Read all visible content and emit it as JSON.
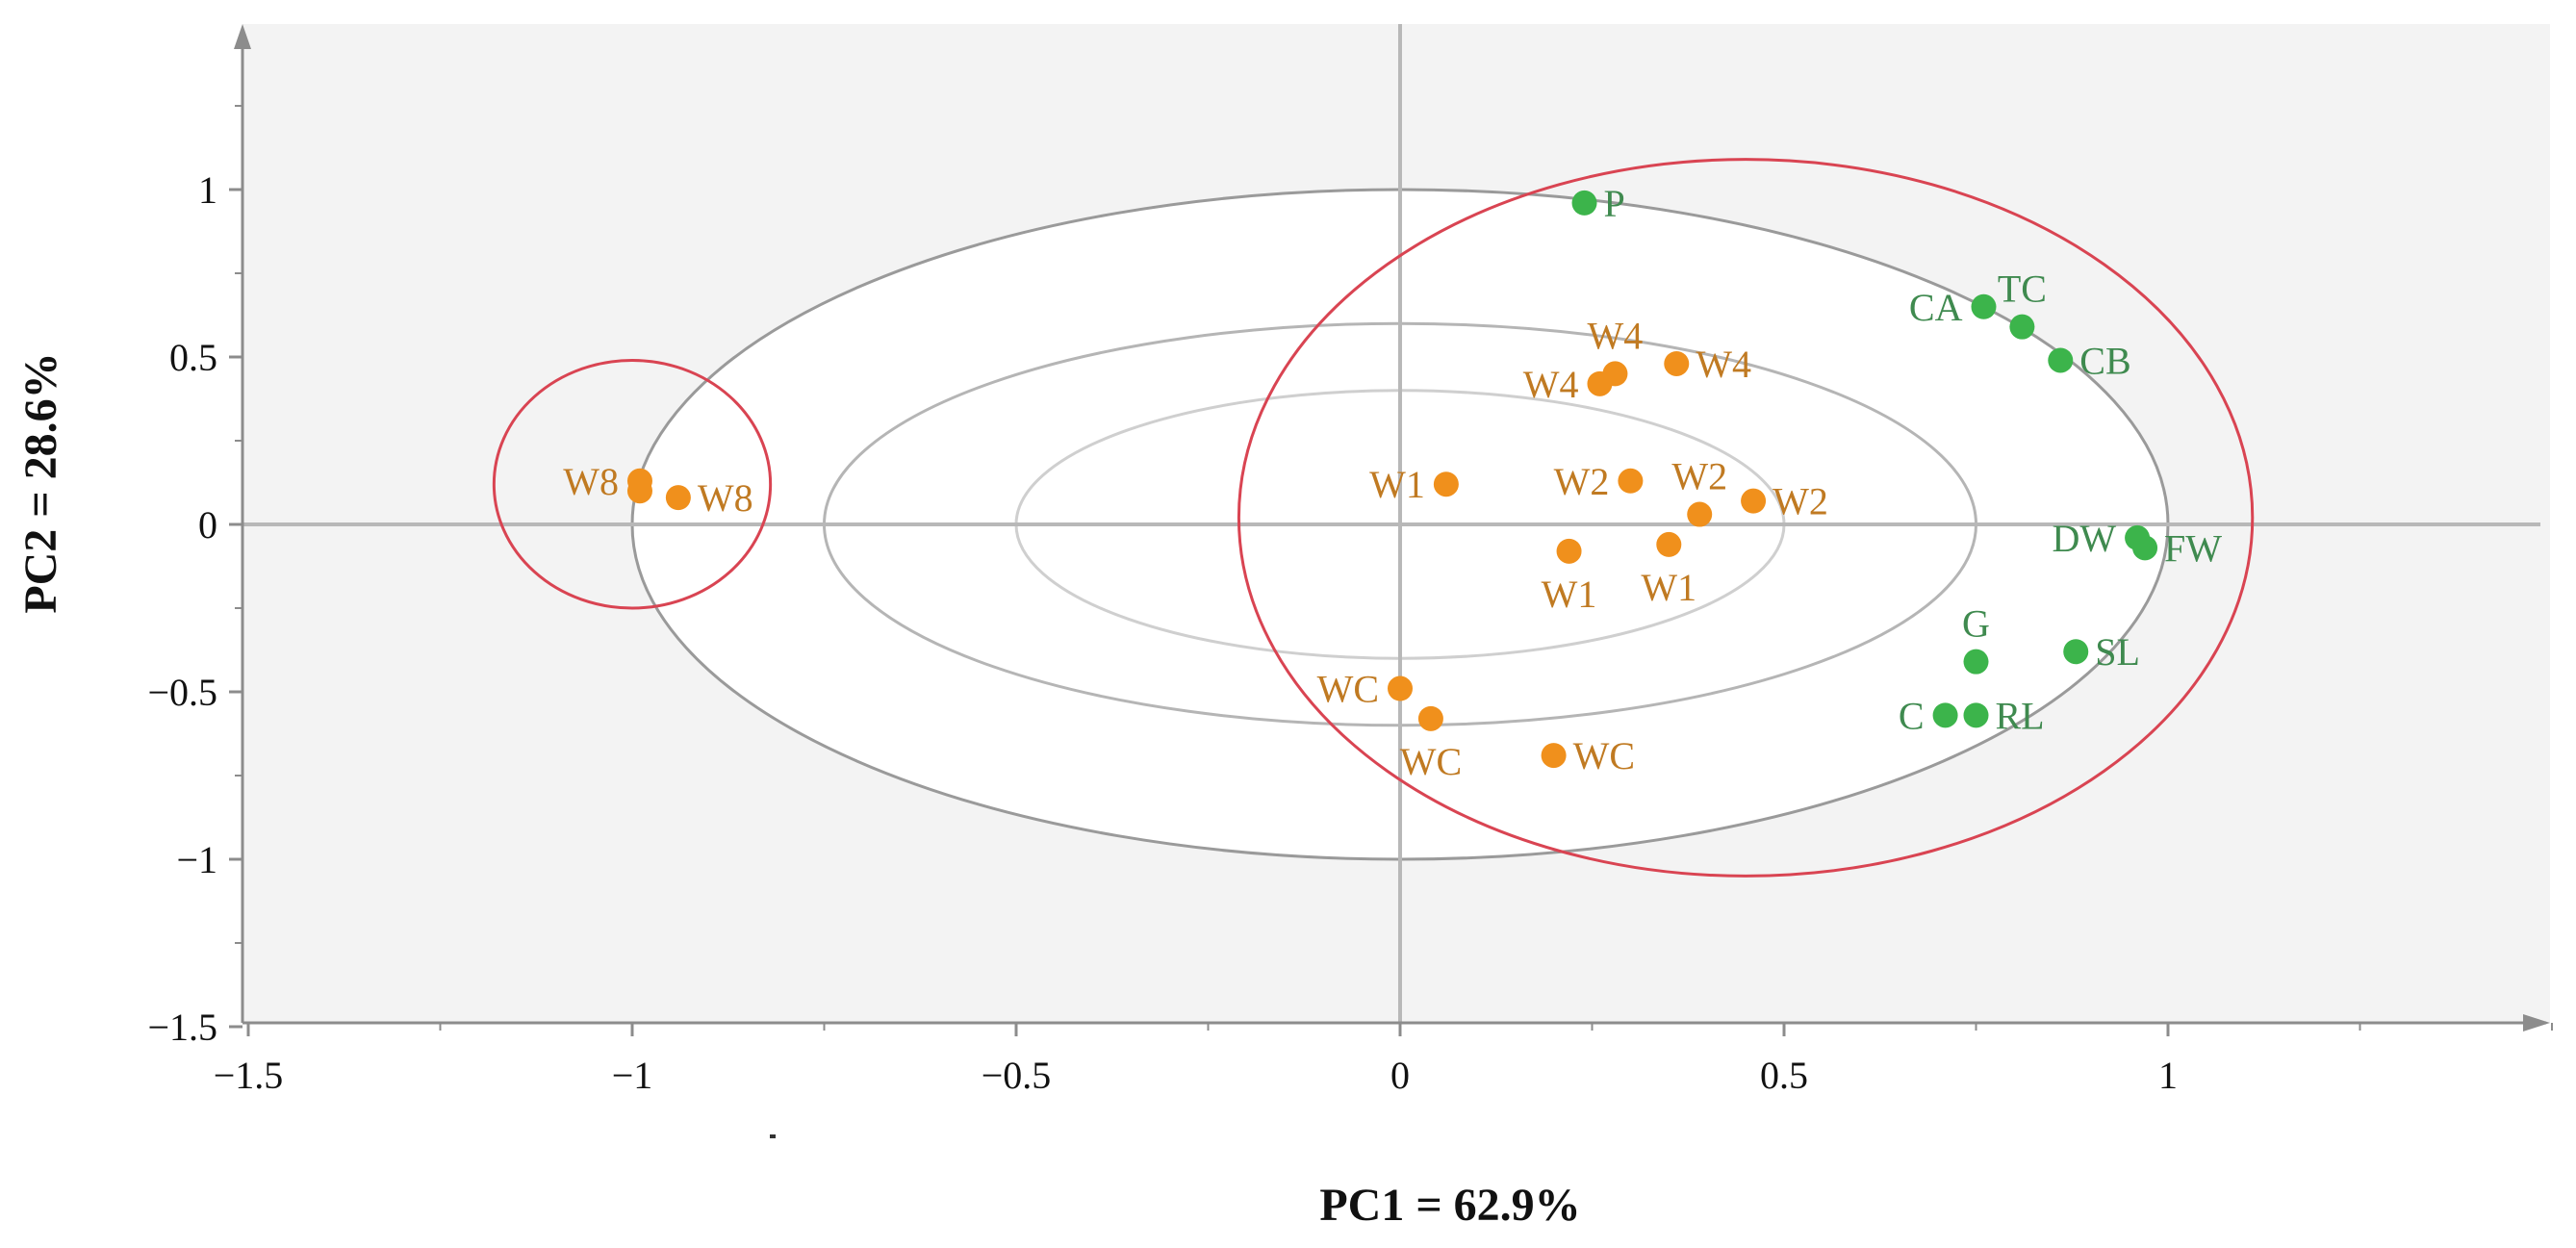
{
  "colors": {
    "plot_background": "#f3f3f3",
    "ellipse_outer": "#9a9a9a",
    "ellipse_middle": "#b5b5b5",
    "ellipse_inner": "#cfcfcf",
    "zero_lines": "#b8b8b8",
    "highlight": "#d94452",
    "orange_marker": "#f0901c",
    "orange_label": "#c07a22",
    "green_marker": "#3cb44b",
    "green_label": "#3f8a4f"
  },
  "chart_data": {
    "type": "scatter",
    "title": "",
    "xlabel": "PC1 = 62.9%",
    "ylabel": "PC2 = 28.6%",
    "xlim": [
      -1.5,
      1.5
    ],
    "ylim": [
      -1.5,
      1.5
    ],
    "x_ticks": [
      {
        "value": -1.5,
        "label": "−1.5"
      },
      {
        "value": -1,
        "label": "−1"
      },
      {
        "value": -0.5,
        "label": "−0.5"
      },
      {
        "value": 0,
        "label": "0"
      },
      {
        "value": 0.5,
        "label": "0.5"
      },
      {
        "value": 1,
        "label": "1"
      }
    ],
    "y_ticks": [
      {
        "value": 1,
        "label": "1"
      },
      {
        "value": 0.5,
        "label": "0.5"
      },
      {
        "value": 0,
        "label": "0"
      },
      {
        "value": -0.5,
        "label": "−0.5"
      },
      {
        "value": -1,
        "label": "−1"
      },
      {
        "value": -1.5,
        "label": "−1.5"
      }
    ],
    "reference_ellipses": [
      {
        "name": "outer",
        "rx": 1.0,
        "ry": 1.0
      },
      {
        "name": "middle",
        "rx": 0.75,
        "ry": 0.6
      },
      {
        "name": "inner",
        "rx": 0.5,
        "ry": 0.4
      }
    ],
    "highlight_ellipses": [
      {
        "name": "left-group",
        "cx": -1.0,
        "cy": 0.12,
        "rx": 0.18,
        "ry": 0.37
      },
      {
        "name": "right-group",
        "cx": 0.45,
        "cy": 0.02,
        "rx": 0.66,
        "ry": 1.07
      }
    ],
    "series": [
      {
        "name": "observations",
        "color": "orange",
        "points": [
          {
            "label": "W8",
            "x": -0.99,
            "y": 0.13,
            "label_pos": "left"
          },
          {
            "label": "W8",
            "x": -0.99,
            "y": 0.1,
            "label_pos": "none"
          },
          {
            "label": "W8",
            "x": -0.94,
            "y": 0.08,
            "label_pos": "right"
          },
          {
            "label": "W1",
            "x": 0.06,
            "y": 0.12,
            "label_pos": "left"
          },
          {
            "label": "W1",
            "x": 0.22,
            "y": -0.08,
            "label_pos": "below"
          },
          {
            "label": "W1",
            "x": 0.35,
            "y": -0.06,
            "label_pos": "below"
          },
          {
            "label": "W2",
            "x": 0.3,
            "y": 0.13,
            "label_pos": "left"
          },
          {
            "label": "W2",
            "x": 0.39,
            "y": 0.03,
            "label_pos": "above"
          },
          {
            "label": "W2",
            "x": 0.46,
            "y": 0.07,
            "label_pos": "right"
          },
          {
            "label": "W4",
            "x": 0.26,
            "y": 0.42,
            "label_pos": "left"
          },
          {
            "label": "W4",
            "x": 0.28,
            "y": 0.45,
            "label_pos": "above"
          },
          {
            "label": "W4",
            "x": 0.36,
            "y": 0.48,
            "label_pos": "right"
          },
          {
            "label": "WC",
            "x": 0.0,
            "y": -0.49,
            "label_pos": "left"
          },
          {
            "label": "WC",
            "x": 0.04,
            "y": -0.58,
            "label_pos": "below"
          },
          {
            "label": "WC",
            "x": 0.2,
            "y": -0.69,
            "label_pos": "right"
          }
        ]
      },
      {
        "name": "variables",
        "color": "green",
        "points": [
          {
            "label": "P",
            "x": 0.24,
            "y": 0.96,
            "label_pos": "right"
          },
          {
            "label": "CA",
            "x": 0.76,
            "y": 0.65,
            "label_pos": "left"
          },
          {
            "label": "TC",
            "x": 0.81,
            "y": 0.59,
            "label_pos": "above"
          },
          {
            "label": "CB",
            "x": 0.86,
            "y": 0.49,
            "label_pos": "right"
          },
          {
            "label": "DW",
            "x": 0.96,
            "y": -0.04,
            "label_pos": "left"
          },
          {
            "label": "FW",
            "x": 0.97,
            "y": -0.07,
            "label_pos": "right"
          },
          {
            "label": "SL",
            "x": 0.88,
            "y": -0.38,
            "label_pos": "right"
          },
          {
            "label": "G",
            "x": 0.75,
            "y": -0.41,
            "label_pos": "above"
          },
          {
            "label": "C",
            "x": 0.71,
            "y": -0.57,
            "label_pos": "left"
          },
          {
            "label": "RL",
            "x": 0.75,
            "y": -0.57,
            "label_pos": "right"
          }
        ]
      }
    ]
  }
}
